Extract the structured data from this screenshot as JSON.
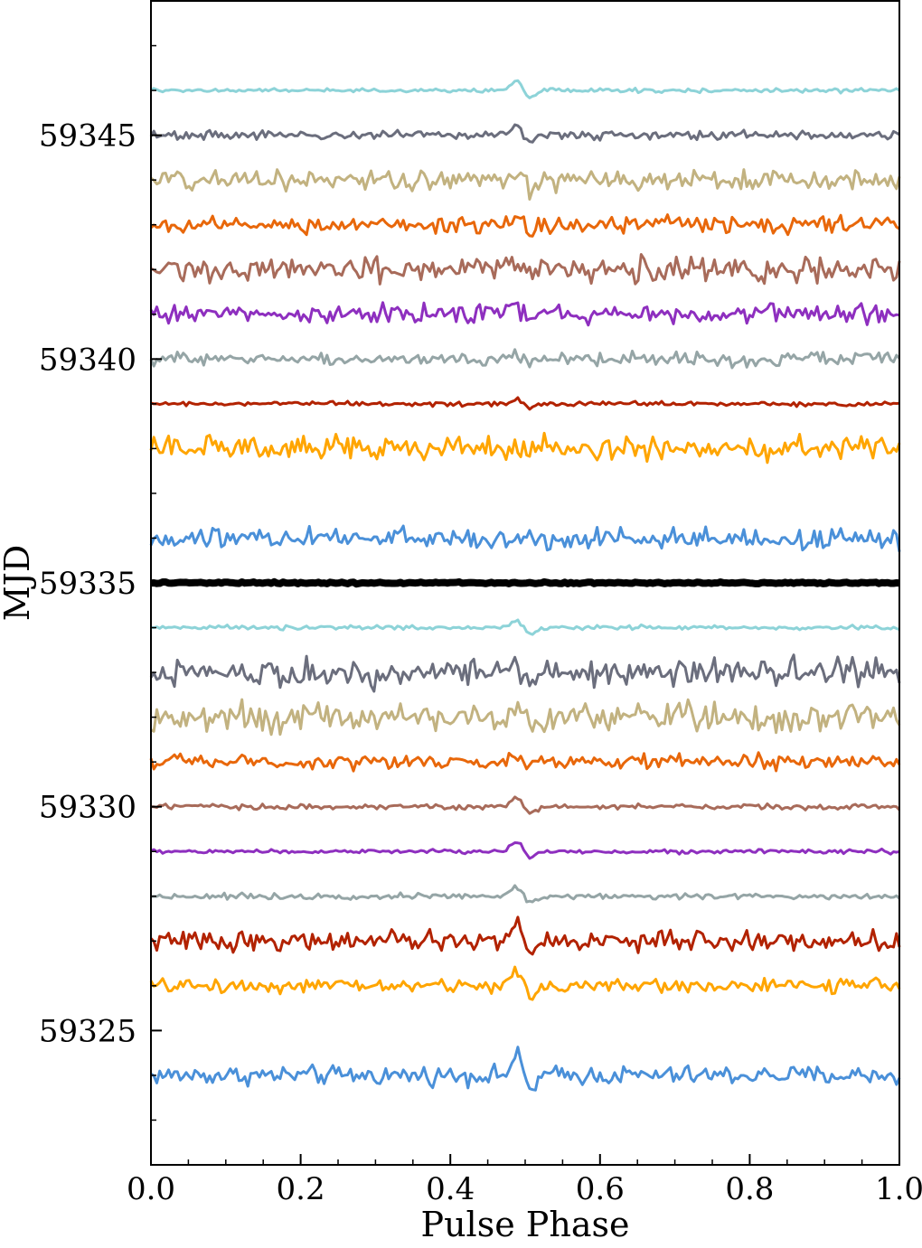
{
  "chart_data": {
    "type": "line",
    "title": "",
    "xlabel": "Pulse Phase",
    "ylabel": "MJD",
    "xlim": [
      0.0,
      1.0
    ],
    "ylim": [
      59322.0,
      59348.0
    ],
    "x_ticks": [
      "0.0",
      "0.2",
      "0.4",
      "0.6",
      "0.8",
      "1.0"
    ],
    "y_ticks": [
      "59325",
      "59330",
      "59335",
      "59340",
      "59345"
    ],
    "grid": false,
    "legend": "none",
    "n_phase_bins": 256,
    "series": [
      {
        "mjd": 59324.0,
        "color": "#4a90d9",
        "noise": 0.55,
        "pulse": 1.1,
        "lw": 3
      },
      {
        "mjd": 59326.0,
        "color": "#ffa500",
        "noise": 0.4,
        "pulse": 0.8,
        "lw": 3
      },
      {
        "mjd": 59327.0,
        "color": "#b22200",
        "noise": 0.55,
        "pulse": 1.0,
        "lw": 3
      },
      {
        "mjd": 59328.0,
        "color": "#95a5a6",
        "noise": 0.16,
        "pulse": 0.55,
        "lw": 3
      },
      {
        "mjd": 59329.0,
        "color": "#8e2fbf",
        "noise": 0.12,
        "pulse": 0.6,
        "lw": 3
      },
      {
        "mjd": 59330.0,
        "color": "#a86b5a",
        "noise": 0.16,
        "pulse": 0.5,
        "lw": 3
      },
      {
        "mjd": 59331.0,
        "color": "#e8670a",
        "noise": 0.4,
        "pulse": 0.4,
        "lw": 3
      },
      {
        "mjd": 59332.0,
        "color": "#c2b280",
        "noise": 0.8,
        "pulse": 0.4,
        "lw": 3
      },
      {
        "mjd": 59333.0,
        "color": "#6b6e7d",
        "noise": 0.8,
        "pulse": 0.4,
        "lw": 3
      },
      {
        "mjd": 59334.0,
        "color": "#8dd3d8",
        "noise": 0.12,
        "pulse": 0.45,
        "lw": 3
      },
      {
        "mjd": 59335.0,
        "color": "#000000",
        "noise": 0.05,
        "pulse": 0.0,
        "lw": 8
      },
      {
        "mjd": 59336.0,
        "color": "#4a90d9",
        "noise": 0.6,
        "pulse": 0.2,
        "lw": 3
      },
      {
        "mjd": 59338.0,
        "color": "#ffa500",
        "noise": 0.7,
        "pulse": 0.2,
        "lw": 3
      },
      {
        "mjd": 59339.0,
        "color": "#b22200",
        "noise": 0.12,
        "pulse": 0.3,
        "lw": 3
      },
      {
        "mjd": 59340.0,
        "color": "#95a5a6",
        "noise": 0.4,
        "pulse": 0.45,
        "lw": 3
      },
      {
        "mjd": 59341.0,
        "color": "#8e2fbf",
        "noise": 0.5,
        "pulse": 0.5,
        "lw": 3
      },
      {
        "mjd": 59342.0,
        "color": "#a86b5a",
        "noise": 0.7,
        "pulse": 0.5,
        "lw": 3
      },
      {
        "mjd": 59343.0,
        "color": "#e8670a",
        "noise": 0.5,
        "pulse": 0.4,
        "lw": 3
      },
      {
        "mjd": 59344.0,
        "color": "#c2b280",
        "noise": 0.6,
        "pulse": 0.6,
        "lw": 3
      },
      {
        "mjd": 59345.0,
        "color": "#6b6e7d",
        "noise": 0.25,
        "pulse": 0.65,
        "lw": 3
      },
      {
        "mjd": 59346.0,
        "color": "#8dd3d8",
        "noise": 0.12,
        "pulse": 0.6,
        "lw": 3
      }
    ]
  }
}
